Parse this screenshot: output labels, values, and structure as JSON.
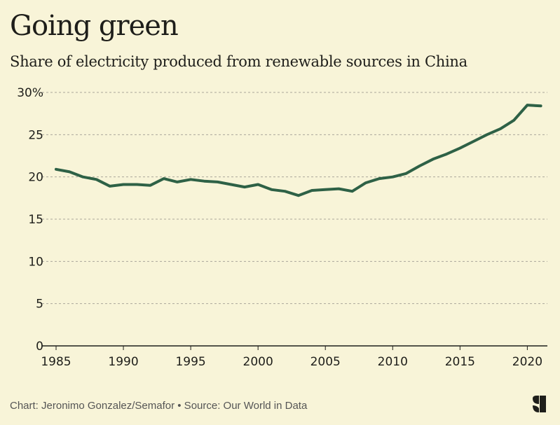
{
  "title": "Going green",
  "subtitle": "Share of electricity produced from renewable sources in China",
  "footer": "Chart: Jeronimo Gonzalez/Semafor • Source: Our World in Data",
  "logo_text": "S",
  "colors": {
    "background": "#f8f4d8",
    "line": "#2e6146",
    "grid": "#aaa69a"
  },
  "chart_data": {
    "type": "line",
    "title": "Going green",
    "subtitle": "Share of electricity produced from renewable sources in China",
    "xlabel": "",
    "ylabel": "",
    "xlim": [
      1985,
      2021
    ],
    "ylim": [
      0,
      30
    ],
    "grid": true,
    "x_ticks": [
      1985,
      1990,
      1995,
      2000,
      2005,
      2010,
      2015,
      2020
    ],
    "y_ticks": [
      0,
      5,
      10,
      15,
      20,
      25,
      30
    ],
    "y_tick_labels": [
      "0",
      "5",
      "10",
      "15",
      "20",
      "25",
      "30%"
    ],
    "x": [
      1985,
      1986,
      1987,
      1988,
      1989,
      1990,
      1991,
      1992,
      1993,
      1994,
      1995,
      1996,
      1997,
      1998,
      1999,
      2000,
      2001,
      2002,
      2003,
      2004,
      2005,
      2006,
      2007,
      2008,
      2009,
      2010,
      2011,
      2012,
      2013,
      2014,
      2015,
      2016,
      2017,
      2018,
      2019,
      2020,
      2021
    ],
    "values": [
      20.9,
      20.6,
      20.0,
      19.7,
      18.9,
      19.1,
      19.1,
      19.0,
      19.8,
      19.4,
      19.7,
      19.5,
      19.4,
      19.1,
      18.8,
      19.1,
      18.5,
      18.3,
      17.8,
      18.4,
      18.5,
      18.6,
      18.3,
      19.3,
      19.8,
      20.0,
      20.4,
      21.3,
      22.1,
      22.7,
      23.4,
      24.2,
      25.0,
      25.7,
      26.7,
      28.5,
      28.4
    ]
  }
}
